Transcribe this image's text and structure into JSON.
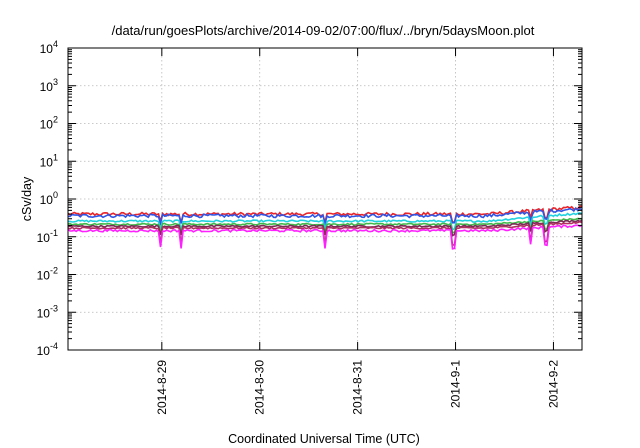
{
  "chart_data": {
    "type": "line",
    "title": "/data/run/goesPlots/archive/2014-09-02/07:00/flux/../bryn/5daysMoon.plot",
    "xlabel": "Coordinated Universal Time (UTC)",
    "ylabel": "cSv/day",
    "y_scale": "log",
    "ylim": [
      0.0001,
      10000
    ],
    "y_ticks": [
      {
        "base": "10",
        "exp": "-4",
        "value": 0.0001
      },
      {
        "base": "10",
        "exp": "-3",
        "value": 0.001
      },
      {
        "base": "10",
        "exp": "-2",
        "value": 0.01
      },
      {
        "base": "10",
        "exp": "-1",
        "value": 0.1
      },
      {
        "base": "10",
        "exp": "0",
        "value": 1
      },
      {
        "base": "10",
        "exp": "1",
        "value": 10
      },
      {
        "base": "10",
        "exp": "2",
        "value": 100
      },
      {
        "base": "10",
        "exp": "3",
        "value": 1000
      },
      {
        "base": "10",
        "exp": "4",
        "value": 10000
      }
    ],
    "xlim": [
      "2014-08-28 01:00",
      "2014-09-02 07:00"
    ],
    "x_ticks": [
      "2014-8-29",
      "2014-8-30",
      "2014-8-31",
      "2014-9-1",
      "2014-9-2"
    ],
    "grid": true,
    "legend": "none",
    "series": [
      {
        "color": "#e8242a",
        "base": 0.4,
        "end": 0.6,
        "noise": 0.1
      },
      {
        "color": "#2f55e6",
        "base": 0.36,
        "end": 0.55,
        "noise": 0.1
      },
      {
        "color": "#20d2e0",
        "base": 0.26,
        "end": 0.42,
        "noise": 0.06
      },
      {
        "color": "#3fb94a",
        "base": 0.215,
        "end": 0.3,
        "noise": 0.05
      },
      {
        "color": "#7a2a55",
        "base": 0.19,
        "end": 0.27,
        "noise": 0.05
      },
      {
        "color": "#b03060",
        "base": 0.17,
        "end": 0.24,
        "noise": 0.05
      },
      {
        "color": "#ff20ff",
        "base": 0.145,
        "end": 0.2,
        "noise": 0.07
      }
    ]
  }
}
